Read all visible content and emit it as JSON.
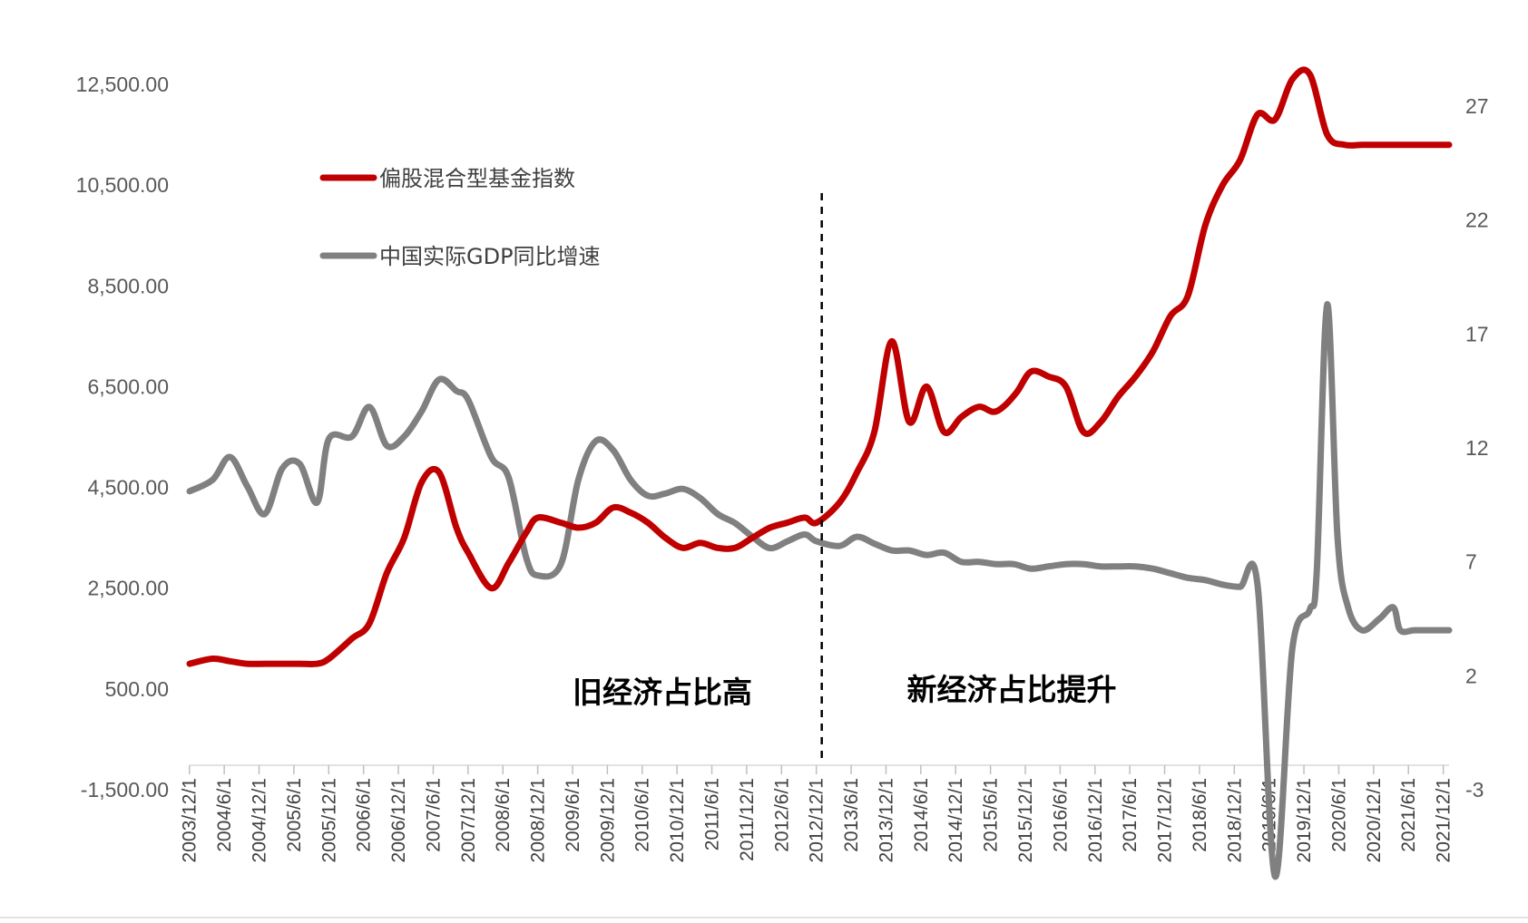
{
  "chart_data": {
    "type": "line",
    "title": "",
    "xlabel": "",
    "ylabel_left": "",
    "ylabel_right": "",
    "ylim_left": [
      -1500,
      12500
    ],
    "ylim_right": [
      -3,
      27
    ],
    "left_ticks": [
      "12,500.00",
      "10,500.00",
      "8,500.00",
      "6,500.00",
      "4,500.00",
      "2,500.00",
      "500.00",
      "-1,500.00"
    ],
    "left_tick_values": [
      12500,
      10500,
      8500,
      6500,
      4500,
      2500,
      500,
      -1500
    ],
    "right_ticks": [
      "27",
      "22",
      "17",
      "12",
      "7",
      "2",
      "-3"
    ],
    "right_tick_values": [
      27,
      22,
      17,
      12,
      7,
      2,
      -3
    ],
    "categories": [
      "2003/12/1",
      "2004/6/1",
      "2004/12/1",
      "2005/6/1",
      "2005/12/1",
      "2006/6/1",
      "2006/12/1",
      "2007/6/1",
      "2007/12/1",
      "2008/6/1",
      "2008/12/1",
      "2009/6/1",
      "2009/12/1",
      "2010/6/1",
      "2010/12/1",
      "2011/6/1",
      "2011/12/1",
      "2012/6/1",
      "2012/12/1",
      "2013/6/1",
      "2013/12/1",
      "2014/6/1",
      "2014/12/1",
      "2015/6/1",
      "2015/12/1",
      "2016/6/1",
      "2016/12/1",
      "2017/6/1",
      "2017/12/1",
      "2018/6/1",
      "2018/12/1",
      "2019/6/1",
      "2019/12/1",
      "2020/6/1",
      "2020/12/1",
      "2021/6/1",
      "2021/12/1"
    ],
    "divider_category": "2012/12/1",
    "annotations": [
      {
        "text": "旧经济占比高",
        "position": "left-bottom"
      },
      {
        "text": "新经济占比提升",
        "position": "right-bottom"
      }
    ],
    "legend_position": "top-left",
    "series": [
      {
        "name": "偏股混合型基金指数",
        "axis": "left",
        "color": "#C00000",
        "x": [
          2003.92,
          2004.25,
          2004.5,
          2004.75,
          2005.0,
          2005.25,
          2005.5,
          2005.75,
          2005.92,
          2006.25,
          2006.5,
          2006.75,
          2007.0,
          2007.25,
          2007.5,
          2007.75,
          2007.92,
          2008.25,
          2008.5,
          2008.75,
          2008.92,
          2009.25,
          2009.5,
          2009.75,
          2010.0,
          2010.25,
          2010.5,
          2010.75,
          2011.0,
          2011.25,
          2011.5,
          2011.75,
          2012.0,
          2012.25,
          2012.5,
          2012.75,
          2012.92,
          2013.25,
          2013.5,
          2013.75,
          2014.0,
          2014.25,
          2014.5,
          2014.75,
          2015.0,
          2015.25,
          2015.45,
          2015.6,
          2015.8,
          2016.0,
          2016.25,
          2016.5,
          2016.75,
          2017.0,
          2017.25,
          2017.5,
          2017.75,
          2018.0,
          2018.25,
          2018.5,
          2018.75,
          2019.0,
          2019.25,
          2019.5,
          2019.75,
          2020.0,
          2020.25,
          2020.5,
          2020.75,
          2021.0,
          2021.25,
          2021.5,
          2021.75,
          2022.0
        ],
        "values": [
          1000,
          1100,
          1050,
          1000,
          1000,
          1000,
          1000,
          1000,
          1100,
          1500,
          1800,
          2800,
          3500,
          4600,
          4800,
          3700,
          3200,
          2500,
          3000,
          3600,
          3900,
          3800,
          3700,
          3800,
          4100,
          4000,
          3800,
          3500,
          3300,
          3400,
          3300,
          3300,
          3500,
          3700,
          3800,
          3900,
          3800,
          4200,
          4800,
          5600,
          7400,
          5800,
          6500,
          5600,
          5900,
          6100,
          6000,
          6100,
          6400,
          6800,
          6700,
          6500,
          5600,
          5800,
          6300,
          6700,
          7200,
          7900,
          8300,
          9700,
          10500,
          11000,
          11900,
          11800,
          12600,
          12700,
          11500,
          11300,
          11300,
          11300,
          11300,
          11300,
          11300,
          11300
        ]
      },
      {
        "name": "中国实际GDP同比增速",
        "axis": "right",
        "color": "#808080",
        "x": [
          2003.92,
          2004.25,
          2004.5,
          2004.75,
          2005.0,
          2005.25,
          2005.5,
          2005.75,
          2005.92,
          2006.25,
          2006.5,
          2006.75,
          2007.0,
          2007.25,
          2007.5,
          2007.75,
          2007.92,
          2008.25,
          2008.5,
          2008.75,
          2008.92,
          2009.25,
          2009.5,
          2009.75,
          2010.0,
          2010.25,
          2010.5,
          2010.75,
          2011.0,
          2011.25,
          2011.5,
          2011.75,
          2012.0,
          2012.25,
          2012.5,
          2012.75,
          2012.92,
          2013.25,
          2013.5,
          2013.75,
          2014.0,
          2014.25,
          2014.5,
          2014.75,
          2015.0,
          2015.25,
          2015.5,
          2015.75,
          2016.0,
          2016.25,
          2016.5,
          2016.75,
          2017.0,
          2017.25,
          2017.5,
          2017.75,
          2018.0,
          2018.25,
          2018.5,
          2018.75,
          2019.0,
          2019.25,
          2019.5,
          2019.75,
          2020.0,
          2020.1,
          2020.25,
          2020.4,
          2020.55,
          2020.75,
          2021.0,
          2021.2,
          2021.3,
          2021.5,
          2021.75,
          2022.0
        ],
        "values": [
          10.1,
          10.6,
          11.6,
          10.3,
          9.1,
          11.1,
          11.3,
          9.6,
          12.4,
          12.5,
          13.8,
          12.1,
          12.5,
          13.6,
          15.0,
          14.5,
          14.1,
          11.6,
          10.7,
          7.2,
          6.4,
          6.9,
          10.6,
          12.3,
          11.9,
          10.6,
          9.9,
          10.0,
          10.2,
          9.8,
          9.1,
          8.7,
          8.1,
          7.6,
          7.9,
          8.2,
          7.9,
          7.7,
          8.1,
          7.8,
          7.5,
          7.5,
          7.3,
          7.4,
          7.0,
          7.0,
          6.9,
          6.9,
          6.7,
          6.8,
          6.9,
          6.9,
          6.8,
          6.8,
          6.8,
          6.7,
          6.5,
          6.3,
          6.2,
          6.0,
          5.9,
          6.0,
          -6.8,
          3.2,
          4.9,
          6.5,
          18.3,
          8.0,
          5.0,
          4.0,
          4.5,
          5.0,
          4.0,
          4.0,
          4.0,
          4.0
        ]
      }
    ]
  },
  "legend": {
    "items": [
      {
        "label": "偏股混合型基金指数",
        "color": "#C00000"
      },
      {
        "label": "中国实际GDP同比增速",
        "color": "#808080"
      }
    ]
  }
}
